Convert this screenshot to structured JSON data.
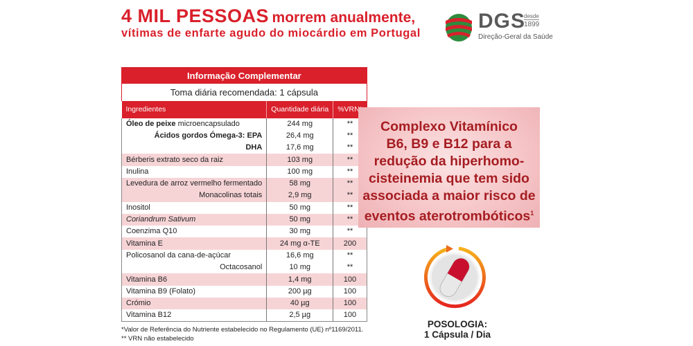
{
  "headline": {
    "big": "4 MIL PESSOAS",
    "rest": "morrem anualmente,",
    "line2": "vítimas de enfarte agudo do miocárdio em Portugal"
  },
  "logo": {
    "abbr": "DGS",
    "desde": "desde",
    "year": "1899",
    "full": "Direção-Geral da Saúde"
  },
  "table": {
    "title": "Informação Complementar",
    "subtitle": "Toma diária recomendada: 1 cápsula",
    "columns": [
      "Ingredientes",
      "Quantidade diária",
      "%VRN*"
    ],
    "rows": [
      {
        "bold": "Óleo de peixe",
        "name": " microencapsulado",
        "qty": "244 mg",
        "vrn": "**"
      },
      {
        "bold": "Ácidos gordos Ómega-3: EPA",
        "name": "",
        "qty": "26,4 mg",
        "vrn": "**"
      },
      {
        "bold": "DHA",
        "name": "",
        "qty": "17,6 mg",
        "vrn": "**"
      },
      {
        "name": "Bérberis extrato seco da raiz",
        "qty": "103 mg",
        "vrn": "**"
      },
      {
        "name": "Inulina",
        "qty": "100 mg",
        "vrn": "**"
      },
      {
        "name": "Levedura de arroz vermelho fermentado",
        "qty": "58 mg",
        "vrn": "**"
      },
      {
        "name": "Monacolinas totais",
        "qty": "2,9 mg",
        "vrn": "**"
      },
      {
        "name": "Inositol",
        "qty": "50 mg",
        "vrn": "**"
      },
      {
        "name": "Coriandrum Sativum",
        "qty": "50 mg",
        "vrn": "**"
      },
      {
        "name": "Coenzima Q10",
        "qty": "30 mg",
        "vrn": "**"
      },
      {
        "name": "Vitamina E",
        "qty": "24 mg α-TE",
        "vrn": "200"
      },
      {
        "name": "Policosanol da cana-de-açúcar",
        "qty": "16,6 mg",
        "vrn": "**"
      },
      {
        "name": "Octacosanol",
        "qty": "10 mg",
        "vrn": "**"
      },
      {
        "name": "Vitamina B6",
        "qty": "1,4 mg",
        "vrn": "100"
      },
      {
        "name": "Vitamina B9 (Folato)",
        "qty": "200 µg",
        "vrn": "100"
      },
      {
        "name": "Crómio",
        "qty": "40 µg",
        "vrn": "100"
      },
      {
        "name": "Vitamina B12",
        "qty": "2,5 µg",
        "vrn": "100"
      }
    ]
  },
  "footnotes": [
    "*Valor de Referência do Nutriente estabelecido no Regulamento (UE) nº1169/2011.",
    "** VRN não estabelecido"
  ],
  "panel": {
    "lines": [
      "Complexo Vitamínico",
      "B6, B9 e B12 para a",
      "redução da hiperhomo-",
      "cisteinemia que tem sido",
      "associada a maior risco de",
      "eventos aterotrombóticos"
    ],
    "ref": "1"
  },
  "posologia": {
    "label": "POSOLOGIA:",
    "dose": "1 Cápsula / Dia"
  },
  "colors": {
    "brand_red": "#d9202b",
    "row_shade": "#f6d4d6",
    "panel_text": "#a51d22"
  }
}
